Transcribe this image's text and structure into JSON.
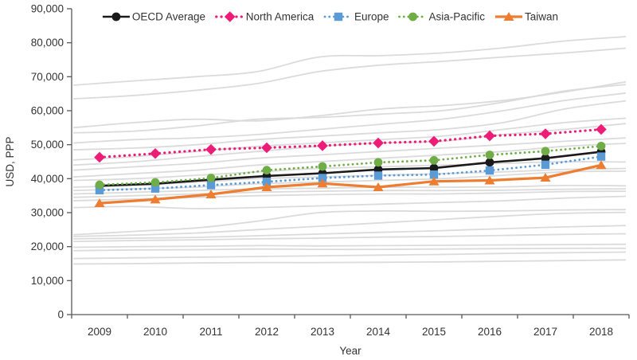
{
  "chart_data": {
    "type": "line",
    "title": "",
    "xlabel": "Year",
    "ylabel": "USD, PPP",
    "x": [
      "2009",
      "2010",
      "2011",
      "2012",
      "2013",
      "2014",
      "2015",
      "2016",
      "2017",
      "2018"
    ],
    "ylim": [
      0,
      90000
    ],
    "ytick_step": 10000,
    "ytick_labels": [
      "0",
      "10,000",
      "20,000",
      "30,000",
      "40,000",
      "50,000",
      "60,000",
      "70,000",
      "80,000",
      "90,000"
    ],
    "grid": "off",
    "legend_position": "top-center",
    "colors": {
      "axis": "#595959",
      "text": "#333333",
      "background_lines": "#DBDBDB"
    },
    "series": [
      {
        "name": "OECD Average",
        "color": "#1a1a1a",
        "marker": "circle",
        "line": "solid",
        "values": [
          37900,
          38500,
          39700,
          40800,
          41600,
          42700,
          43100,
          44800,
          46000,
          47900
        ]
      },
      {
        "name": "North America",
        "color": "#EC1C77",
        "marker": "diamond",
        "line": "dotted",
        "values": [
          46300,
          47400,
          48600,
          49100,
          49700,
          50500,
          51000,
          52600,
          53200,
          54500
        ]
      },
      {
        "name": "Europe",
        "color": "#5B9BD5",
        "marker": "square",
        "line": "dotted",
        "values": [
          36600,
          37100,
          38100,
          39100,
          40200,
          40900,
          41200,
          42400,
          44100,
          46500
        ]
      },
      {
        "name": "Asia-Pacific",
        "color": "#70AD47",
        "marker": "circle",
        "line": "dotted",
        "values": [
          38200,
          38900,
          40200,
          42500,
          43600,
          44800,
          45400,
          47000,
          48100,
          49600
        ]
      },
      {
        "name": "Taiwan",
        "color": "#ED7D31",
        "marker": "triangle",
        "line": "solid",
        "values": [
          32800,
          33900,
          35400,
          37500,
          38600,
          37500,
          39200,
          39500,
          40300,
          44000
        ]
      }
    ],
    "background_series": {
      "description": "individual OECD countries",
      "color": "#DBDBDB",
      "lines": [
        [
          67500,
          68800,
          70000,
          71500,
          75800,
          76200,
          77000,
          78500,
          80500,
          81800
        ],
        [
          63500,
          64500,
          66000,
          68000,
          71500,
          73400,
          74500,
          75800,
          77000,
          78400
        ],
        [
          55000,
          56500,
          57500,
          57000,
          58500,
          60500,
          61500,
          63000,
          65500,
          68500
        ],
        [
          53500,
          54000,
          55500,
          57500,
          58000,
          59000,
          60000,
          62500,
          65800,
          67700
        ],
        [
          50500,
          51500,
          52000,
          53000,
          54500,
          56000,
          57500,
          60000,
          63000,
          65200
        ],
        [
          48500,
          49000,
          50000,
          51500,
          52500,
          53500,
          54500,
          56500,
          60500,
          62900
        ],
        [
          45500,
          46500,
          48000,
          49500,
          50500,
          51500,
          52500,
          54500,
          56500,
          57800
        ],
        [
          44000,
          45000,
          46500,
          48000,
          49500,
          50500,
          51000,
          53000,
          54500,
          56200
        ],
        [
          42500,
          43500,
          44500,
          46000,
          47000,
          48000,
          49000,
          50000,
          51000,
          52000
        ],
        [
          40500,
          41500,
          42500,
          44000,
          45000,
          46000,
          47000,
          48000,
          49500,
          50400
        ],
        [
          39500,
          40000,
          41000,
          42000,
          43000,
          43500,
          44000,
          44500,
          45000,
          44900
        ],
        [
          37500,
          38000,
          39000,
          40000,
          40500,
          41000,
          41500,
          42000,
          42700,
          43000
        ],
        [
          36500,
          37000,
          37500,
          38500,
          39000,
          39500,
          40000,
          41000,
          42000,
          42200
        ],
        [
          35500,
          36000,
          36500,
          37000,
          37200,
          37500,
          37500,
          37600,
          38000,
          37900
        ],
        [
          34500,
          35000,
          35500,
          36000,
          36300,
          36500,
          36500,
          36600,
          36900,
          37000
        ],
        [
          33500,
          34000,
          34500,
          35000,
          35300,
          35500,
          35500,
          35800,
          36200,
          36300
        ],
        [
          31500,
          31800,
          31200,
          31500,
          32000,
          32500,
          33000,
          33500,
          34300,
          34800
        ],
        [
          23500,
          24500,
          25500,
          27500,
          30000,
          30500,
          30400,
          30500,
          30800,
          30900
        ],
        [
          23000,
          23400,
          24000,
          25000,
          26000,
          27000,
          28000,
          29000,
          29800,
          30100
        ],
        [
          22300,
          22500,
          22700,
          23200,
          23700,
          24200,
          24700,
          25300,
          25800,
          26200
        ],
        [
          21500,
          21800,
          22000,
          22300,
          22500,
          22800,
          23000,
          23300,
          23600,
          23800
        ],
        [
          19800,
          20000,
          20100,
          20300,
          20200,
          20300,
          20400,
          20500,
          20600,
          20700
        ],
        [
          18800,
          19000,
          19100,
          19300,
          19200,
          19200,
          19300,
          19400,
          19500,
          19500
        ],
        [
          16500,
          16700,
          16900,
          17100,
          17300,
          17500,
          17700,
          18000,
          18200,
          18400
        ],
        [
          14900,
          15000,
          15200,
          15300,
          15300,
          15400,
          15500,
          15700,
          15900,
          16100
        ]
      ]
    }
  }
}
